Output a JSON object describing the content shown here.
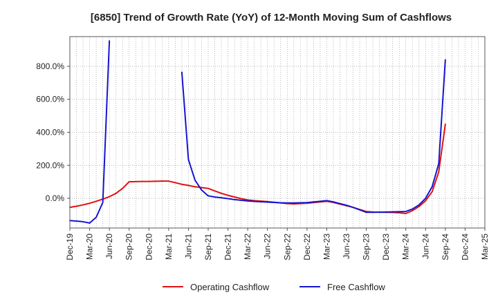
{
  "chart_data": {
    "type": "line",
    "title": "[6850]  Trend of Growth Rate (YoY) of 12-Month Moving Sum of Cashflows",
    "xlabel": "",
    "ylabel": "",
    "ylim": [
      -180,
      980
    ],
    "yticks": [
      0,
      200,
      400,
      600,
      800
    ],
    "ytick_labels": [
      "0.0%",
      "200.0%",
      "400.0%",
      "600.0%",
      "800.0%"
    ],
    "x_start": "Dec-19",
    "x_end": "Mar-25",
    "xtick_labels": [
      "Dec-19",
      "Mar-20",
      "Jun-20",
      "Sep-20",
      "Dec-20",
      "Mar-21",
      "Jun-21",
      "Sep-21",
      "Dec-21",
      "Mar-22",
      "Jun-22",
      "Sep-22",
      "Dec-22",
      "Mar-23",
      "Jun-23",
      "Sep-23",
      "Dec-23",
      "Mar-24",
      "Jun-24",
      "Sep-24",
      "Dec-24",
      "Mar-25"
    ],
    "grid": true,
    "legend_position": "bottom",
    "series": [
      {
        "name": "Operating Cashflow",
        "color": "#e01010",
        "points": [
          [
            "Dec-19",
            -55
          ],
          [
            "Jan-20",
            -48
          ],
          [
            "Feb-20",
            -40
          ],
          [
            "Mar-20",
            -30
          ],
          [
            "Apr-20",
            -18
          ],
          [
            "May-20",
            -5
          ],
          [
            "Jun-20",
            10
          ],
          [
            "Jul-20",
            30
          ],
          [
            "Aug-20",
            60
          ],
          [
            "Sep-20",
            100
          ],
          [
            "Oct-20",
            101
          ],
          [
            "Nov-20",
            102
          ],
          [
            "Dec-20",
            102
          ],
          [
            "Jan-21",
            103
          ],
          [
            "Feb-21",
            104
          ],
          [
            "Mar-21",
            104
          ],
          [
            "Apr-21",
            95
          ],
          [
            "May-21",
            85
          ],
          [
            "Jun-21",
            78
          ],
          [
            "Jul-21",
            70
          ],
          [
            "Aug-21",
            65
          ],
          [
            "Sep-21",
            60
          ],
          [
            "Oct-21",
            45
          ],
          [
            "Nov-21",
            30
          ],
          [
            "Dec-21",
            18
          ],
          [
            "Jan-22",
            8
          ],
          [
            "Feb-22",
            -2
          ],
          [
            "Mar-22",
            -10
          ],
          [
            "Apr-22",
            -14
          ],
          [
            "May-22",
            -17
          ],
          [
            "Jun-22",
            -20
          ],
          [
            "Jul-22",
            -24
          ],
          [
            "Aug-22",
            -28
          ],
          [
            "Sep-22",
            -32
          ],
          [
            "Oct-22",
            -34
          ],
          [
            "Nov-22",
            -32
          ],
          [
            "Dec-22",
            -30
          ],
          [
            "Jan-23",
            -26
          ],
          [
            "Feb-23",
            -22
          ],
          [
            "Mar-23",
            -18
          ],
          [
            "Apr-23",
            -25
          ],
          [
            "May-23",
            -35
          ],
          [
            "Jun-23",
            -45
          ],
          [
            "Jul-23",
            -55
          ],
          [
            "Aug-23",
            -68
          ],
          [
            "Sep-23",
            -80
          ],
          [
            "Oct-23",
            -83
          ],
          [
            "Nov-23",
            -84
          ],
          [
            "Dec-23",
            -85
          ],
          [
            "Jan-24",
            -86
          ],
          [
            "Feb-24",
            -88
          ],
          [
            "Mar-24",
            -92
          ],
          [
            "Apr-24",
            -75
          ],
          [
            "May-24",
            -50
          ],
          [
            "Jun-24",
            -15
          ],
          [
            "Jul-24",
            40
          ],
          [
            "Aug-24",
            160
          ],
          [
            "Sep-24",
            450
          ]
        ]
      },
      {
        "name": "Free Cashflow",
        "color": "#1414d2",
        "points": [
          [
            "Dec-19",
            -135
          ],
          [
            "Jan-20",
            -138
          ],
          [
            "Feb-20",
            -142
          ],
          [
            "Mar-20",
            -150
          ],
          [
            "Apr-20",
            -115
          ],
          [
            "May-20",
            -25
          ],
          [
            "Jun-20",
            955
          ],
          [
            "May-21",
            765
          ],
          [
            "Jun-21",
            235
          ],
          [
            "Jul-21",
            110
          ],
          [
            "Aug-21",
            50
          ],
          [
            "Sep-21",
            15
          ],
          [
            "Oct-21",
            8
          ],
          [
            "Nov-21",
            3
          ],
          [
            "Dec-21",
            -2
          ],
          [
            "Jan-22",
            -8
          ],
          [
            "Feb-22",
            -12
          ],
          [
            "Mar-22",
            -16
          ],
          [
            "Apr-22",
            -19
          ],
          [
            "May-22",
            -21
          ],
          [
            "Jun-22",
            -23
          ],
          [
            "Jul-22",
            -25
          ],
          [
            "Aug-22",
            -27
          ],
          [
            "Sep-22",
            -28
          ],
          [
            "Oct-22",
            -28
          ],
          [
            "Nov-22",
            -27
          ],
          [
            "Dec-22",
            -26
          ],
          [
            "Jan-23",
            -22
          ],
          [
            "Feb-23",
            -18
          ],
          [
            "Mar-23",
            -14
          ],
          [
            "Apr-23",
            -22
          ],
          [
            "May-23",
            -32
          ],
          [
            "Jun-23",
            -42
          ],
          [
            "Jul-23",
            -55
          ],
          [
            "Aug-23",
            -70
          ],
          [
            "Sep-23",
            -85
          ],
          [
            "Oct-23",
            -85
          ],
          [
            "Nov-23",
            -84
          ],
          [
            "Dec-23",
            -83
          ],
          [
            "Jan-24",
            -82
          ],
          [
            "Feb-24",
            -81
          ],
          [
            "Mar-24",
            -80
          ],
          [
            "Apr-24",
            -65
          ],
          [
            "May-24",
            -40
          ],
          [
            "Jun-24",
            0
          ],
          [
            "Jul-24",
            70
          ],
          [
            "Aug-24",
            210
          ],
          [
            "Sep-24",
            840
          ]
        ]
      }
    ]
  }
}
